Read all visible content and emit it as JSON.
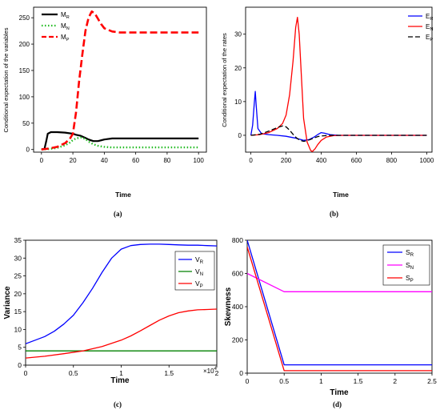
{
  "chart_data": [
    {
      "type": "line",
      "panel_caption": "(a)",
      "xlabel": "Time",
      "ylabel": "Conditional expectation of the variables",
      "xlim": [
        -5,
        105
      ],
      "ylim": [
        -5,
        270
      ],
      "xticks": [
        "0",
        "20",
        "40",
        "60",
        "80",
        "100"
      ],
      "yticks": [
        "0",
        "50",
        "100",
        "150",
        "200",
        "250"
      ],
      "legend_position": "top-left",
      "series": [
        {
          "name": "M",
          "sub": "R",
          "color": "#000000",
          "dash": "solid",
          "x": [
            0,
            2,
            3,
            4,
            6,
            10,
            15,
            20,
            22,
            25,
            28,
            30,
            33,
            36,
            40,
            45,
            50,
            60,
            80,
            100
          ],
          "y": [
            0,
            2,
            15,
            30,
            33,
            33,
            32,
            30,
            28,
            26,
            22,
            19,
            16,
            16,
            19,
            21,
            21,
            21,
            21,
            21
          ]
        },
        {
          "name": "M",
          "sub": "N",
          "color": "#22bb22",
          "dash": "dotted",
          "x": [
            0,
            5,
            10,
            15,
            18,
            20,
            22,
            25,
            28,
            30,
            33,
            36,
            40,
            45,
            50,
            60,
            80,
            100
          ],
          "y": [
            0,
            1,
            3,
            8,
            13,
            18,
            21,
            23,
            20,
            15,
            10,
            7,
            5,
            4,
            4,
            4,
            4,
            4
          ]
        },
        {
          "name": "M",
          "sub": "P",
          "color": "#ff0000",
          "dash": "dashed",
          "x": [
            0,
            5,
            10,
            15,
            18,
            20,
            22,
            24,
            26,
            28,
            30,
            32,
            34,
            36,
            38,
            40,
            45,
            50,
            60,
            80,
            100
          ],
          "y": [
            0,
            2,
            5,
            12,
            20,
            30,
            70,
            130,
            180,
            225,
            250,
            262,
            258,
            248,
            238,
            230,
            224,
            222,
            222,
            222,
            222
          ]
        }
      ]
    },
    {
      "type": "line",
      "panel_caption": "(b)",
      "xlabel": "Time",
      "ylabel": "Conditional expectation of the rates",
      "xlim": [
        -30,
        1030
      ],
      "ylim": [
        -5,
        38
      ],
      "xticks": [
        "0",
        "200",
        "400",
        "600",
        "800",
        "1000"
      ],
      "yticks": [
        "0",
        "10",
        "20",
        "30"
      ],
      "legend_position": "top-right",
      "series": [
        {
          "name": "E",
          "sub": "R",
          "color": "#0000ff",
          "dash": "solid",
          "x": [
            0,
            10,
            20,
            25,
            30,
            40,
            60,
            100,
            150,
            200,
            250,
            280,
            300,
            330,
            360,
            380,
            400,
            420,
            450,
            500,
            600,
            800,
            1000
          ],
          "y": [
            0,
            3,
            10,
            13,
            9,
            2,
            0.5,
            0.2,
            0,
            -0.3,
            -0.8,
            -1.2,
            -1.5,
            -1.3,
            -0.5,
            0.2,
            0.8,
            0.6,
            0.2,
            0,
            0,
            0,
            0
          ]
        },
        {
          "name": "E",
          "sub": "N",
          "color": "#ff0000",
          "dash": "solid",
          "x": [
            0,
            50,
            100,
            150,
            180,
            200,
            220,
            240,
            255,
            265,
            275,
            290,
            300,
            320,
            340,
            350,
            365,
            380,
            400,
            430,
            470,
            520,
            600,
            800,
            1000
          ],
          "y": [
            0,
            0.2,
            0.8,
            2,
            3.5,
            6,
            12,
            22,
            32,
            35,
            30,
            15,
            5,
            -2,
            -4.5,
            -4.8,
            -4,
            -2.8,
            -1.5,
            -0.5,
            -0.1,
            0,
            0,
            0,
            0
          ]
        },
        {
          "name": "E",
          "sub": "P",
          "color": "#000000",
          "dash": "dashed",
          "x": [
            0,
            50,
            100,
            150,
            180,
            200,
            220,
            240,
            260,
            280,
            300,
            320,
            340,
            360,
            380,
            400,
            450,
            500,
            600,
            800,
            1000
          ],
          "y": [
            0,
            0.3,
            1.2,
            2.3,
            2.8,
            2.5,
            1.5,
            0.3,
            -0.8,
            -1.5,
            -1.8,
            -1.6,
            -1.2,
            -0.8,
            -0.4,
            -0.2,
            0,
            0,
            0,
            0,
            0
          ]
        }
      ]
    },
    {
      "type": "line",
      "panel_caption": "(c)",
      "xlabel": "Time",
      "ylabel": "Variance",
      "xlim": [
        0,
        2
      ],
      "ylim": [
        0,
        35
      ],
      "x_multiplier": "×10",
      "x_multiplier_exp": "4",
      "xticks": [
        "0",
        "0.5",
        "1",
        "1.5",
        "2"
      ],
      "yticks": [
        "0",
        "5",
        "10",
        "15",
        "20",
        "25",
        "30",
        "35"
      ],
      "legend_position": "top-right",
      "series": [
        {
          "name": "V",
          "sub": "R",
          "color": "#0000ff",
          "dash": "solid",
          "x": [
            0,
            0.1,
            0.2,
            0.3,
            0.4,
            0.5,
            0.6,
            0.7,
            0.8,
            0.9,
            1.0,
            1.1,
            1.2,
            1.3,
            1.4,
            1.5,
            1.6,
            1.7,
            1.8,
            1.9,
            2.0
          ],
          "y": [
            6,
            7,
            8,
            9.5,
            11.5,
            14,
            17.5,
            21.5,
            26,
            30,
            32.5,
            33.5,
            33.8,
            33.9,
            33.9,
            33.8,
            33.7,
            33.6,
            33.6,
            33.5,
            33.4
          ]
        },
        {
          "name": "V",
          "sub": "N",
          "color": "#008000",
          "dash": "solid",
          "x": [
            0,
            0.5,
            1.0,
            1.5,
            2.0
          ],
          "y": [
            4,
            4,
            4,
            4,
            4
          ]
        },
        {
          "name": "V",
          "sub": "P",
          "color": "#ff0000",
          "dash": "solid",
          "x": [
            0,
            0.2,
            0.4,
            0.6,
            0.8,
            1.0,
            1.1,
            1.2,
            1.3,
            1.4,
            1.5,
            1.6,
            1.7,
            1.8,
            1.9,
            2.0
          ],
          "y": [
            2,
            2.5,
            3.2,
            4,
            5.2,
            7,
            8.2,
            9.6,
            11.1,
            12.6,
            13.8,
            14.7,
            15.2,
            15.5,
            15.6,
            15.7
          ]
        }
      ]
    },
    {
      "type": "line",
      "panel_caption": "(d)",
      "xlabel": "Time",
      "ylabel": "Skewness",
      "xlim": [
        0,
        2.5
      ],
      "ylim": [
        0,
        800
      ],
      "xticks": [
        "0",
        "0.5",
        "1",
        "1.5",
        "2",
        "2.5"
      ],
      "yticks": [
        "0",
        "200",
        "400",
        "600",
        "800"
      ],
      "legend_position": "top-right",
      "series": [
        {
          "name": "S",
          "sub": "R",
          "color": "#0000ff",
          "dash": "solid",
          "x": [
            0,
            0.5,
            2.5
          ],
          "y": [
            800,
            50,
            50
          ]
        },
        {
          "name": "S",
          "sub": "N",
          "color": "#ff00ff",
          "dash": "solid",
          "x": [
            0,
            0.5,
            2.5
          ],
          "y": [
            600,
            490,
            490
          ]
        },
        {
          "name": "S",
          "sub": "P",
          "color": "#ff0000",
          "dash": "solid",
          "x": [
            0,
            0.5,
            2.5
          ],
          "y": [
            760,
            15,
            15
          ]
        }
      ]
    }
  ]
}
